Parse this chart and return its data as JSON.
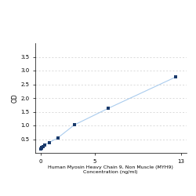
{
  "x_data": [
    0,
    0.05,
    0.1,
    0.2,
    0.4,
    0.8,
    1.6,
    3.125,
    6.25,
    12.5
  ],
  "y_data": [
    0.15,
    0.18,
    0.2,
    0.23,
    0.3,
    0.38,
    0.55,
    1.02,
    1.62,
    2.76
  ],
  "xlabel_line1": "Human Myosin Heavy Chain 9, Non Muscle (MYH9)",
  "xlabel_line2": "Concentration (ng/ml)",
  "ylabel": "OD",
  "xlim": [
    -0.5,
    13.5
  ],
  "ylim": [
    0.0,
    4.0
  ],
  "yticks": [
    0.5,
    1.0,
    1.5,
    2.0,
    2.5,
    3.0,
    3.5
  ],
  "xticks": [
    0,
    5,
    13
  ],
  "xtick_labels": [
    "0",
    "5",
    "13"
  ],
  "line_color": "#aaccee",
  "marker_color": "#1a3a6b",
  "bg_color": "#ffffff",
  "grid_color": "#cccccc",
  "xlabel_fontsize": 4.5,
  "ylabel_fontsize": 5.5,
  "tick_fontsize": 5.0,
  "marker_size": 8
}
